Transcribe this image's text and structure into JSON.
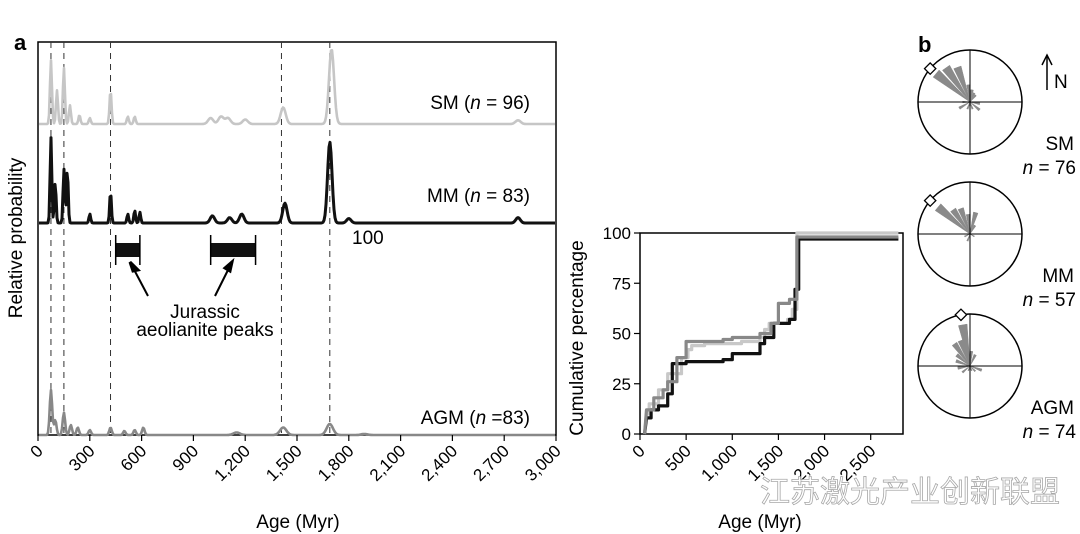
{
  "panel_a": {
    "label": "a"
  },
  "panel_b": {
    "label": "b"
  },
  "watermark": "江苏激光产业创新联盟",
  "chart_data": [
    {
      "type": "line",
      "panel": "a",
      "ylabel": "Relative probability",
      "xlabel": "Age (Myr)",
      "xlim": [
        0,
        3000
      ],
      "xticks": [
        "0",
        "300",
        "600",
        "900",
        "1,200",
        "1,500",
        "1,800",
        "2,100",
        "2,400",
        "2,700",
        "3,000"
      ],
      "reference_lines": [
        75,
        150,
        420,
        1410,
        1690
      ],
      "series": [
        {
          "name": "SM",
          "n_label": "(n = 96)",
          "color": "#c6c6c6",
          "peaks": [
            [
              75,
              0.85
            ],
            [
              110,
              0.45
            ],
            [
              150,
              0.75
            ],
            [
              185,
              0.25
            ],
            [
              240,
              0.12
            ],
            [
              300,
              0.08
            ],
            [
              420,
              0.45
            ],
            [
              520,
              0.1
            ],
            [
              560,
              0.1
            ],
            [
              1000,
              0.08
            ],
            [
              1060,
              0.1
            ],
            [
              1100,
              0.08
            ],
            [
              1200,
              0.06
            ],
            [
              1420,
              0.22
            ],
            [
              1700,
              1.0
            ],
            [
              2780,
              0.05
            ]
          ]
        },
        {
          "name": "MM",
          "n_label": "(n = 83)",
          "color": "#111111",
          "peaks": [
            [
              75,
              0.95
            ],
            [
              100,
              0.45
            ],
            [
              150,
              0.6
            ],
            [
              170,
              0.6
            ],
            [
              300,
              0.1
            ],
            [
              420,
              0.35
            ],
            [
              520,
              0.1
            ],
            [
              560,
              0.14
            ],
            [
              590,
              0.12
            ],
            [
              1010,
              0.08
            ],
            [
              1110,
              0.06
            ],
            [
              1180,
              0.1
            ],
            [
              1430,
              0.22
            ],
            [
              1690,
              0.9
            ],
            [
              1800,
              0.05
            ],
            [
              2780,
              0.06
            ]
          ]
        },
        {
          "name": "AGM",
          "n_label": "(n =83)",
          "color": "#888888",
          "peaks": [
            [
              75,
              0.9
            ],
            [
              100,
              0.3
            ],
            [
              150,
              0.45
            ],
            [
              190,
              0.2
            ],
            [
              230,
              0.15
            ],
            [
              300,
              0.1
            ],
            [
              420,
              0.15
            ],
            [
              500,
              0.08
            ],
            [
              560,
              0.1
            ],
            [
              610,
              0.15
            ],
            [
              1150,
              0.05
            ],
            [
              1420,
              0.15
            ],
            [
              1690,
              0.22
            ],
            [
              1890,
              0.02
            ]
          ]
        }
      ],
      "annotations": [
        {
          "text": "100"
        },
        {
          "text": "Jurassic"
        },
        {
          "text": "aeolianite peaks"
        }
      ],
      "highlight_bars": [
        [
          450,
          590
        ],
        [
          1000,
          1260
        ]
      ]
    },
    {
      "type": "line",
      "panel": "a-inset",
      "ylabel": "Cumulative percentage",
      "xlabel": "Age (Myr)",
      "xlim": [
        0,
        2850
      ],
      "ylim": [
        0,
        100
      ],
      "yticks": [
        "0",
        "25",
        "50",
        "75",
        "100"
      ],
      "xticks": [
        "0",
        "500",
        "1,000",
        "1,500",
        "2,000",
        "2,500"
      ],
      "series": [
        {
          "name": "SM",
          "color": "#c8c8c8",
          "points": [
            [
              50,
              0
            ],
            [
              70,
              10
            ],
            [
              100,
              15
            ],
            [
              200,
              22
            ],
            [
              300,
              30
            ],
            [
              450,
              38
            ],
            [
              520,
              42
            ],
            [
              560,
              44
            ],
            [
              700,
              45
            ],
            [
              1100,
              46
            ],
            [
              1300,
              48
            ],
            [
              1350,
              52
            ],
            [
              1400,
              55
            ],
            [
              1600,
              57
            ],
            [
              1650,
              62
            ],
            [
              1700,
              100
            ],
            [
              2800,
              100
            ]
          ]
        },
        {
          "name": "MM",
          "color": "#111111",
          "points": [
            [
              50,
              0
            ],
            [
              70,
              8
            ],
            [
              120,
              12
            ],
            [
              200,
              14
            ],
            [
              300,
              20
            ],
            [
              350,
              35
            ],
            [
              500,
              36
            ],
            [
              900,
              37
            ],
            [
              1000,
              40
            ],
            [
              1300,
              45
            ],
            [
              1350,
              48
            ],
            [
              1450,
              55
            ],
            [
              1620,
              57
            ],
            [
              1680,
              72
            ],
            [
              1720,
              97
            ],
            [
              2800,
              97
            ]
          ]
        },
        {
          "name": "AGM",
          "color": "#888888",
          "points": [
            [
              50,
              0
            ],
            [
              70,
              12
            ],
            [
              150,
              18
            ],
            [
              250,
              22
            ],
            [
              300,
              26
            ],
            [
              400,
              38
            ],
            [
              500,
              46
            ],
            [
              900,
              47
            ],
            [
              1000,
              48
            ],
            [
              1300,
              50
            ],
            [
              1420,
              55
            ],
            [
              1500,
              65
            ],
            [
              1620,
              67
            ],
            [
              1700,
              98
            ],
            [
              2800,
              98
            ]
          ]
        }
      ]
    },
    {
      "type": "rose",
      "panel": "b",
      "north_label": "N",
      "roses": [
        {
          "name": "SM",
          "n_label": "n = 76",
          "petals": [
            [
              310,
              0.9
            ],
            [
              325,
              0.85
            ],
            [
              340,
              0.75
            ],
            [
              355,
              0.35
            ],
            [
              10,
              0.25
            ],
            [
              25,
              0.2
            ],
            [
              40,
              0.18
            ],
            [
              100,
              0.2
            ],
            [
              130,
              0.25
            ],
            [
              160,
              0.15
            ],
            [
              200,
              0.15
            ],
            [
              240,
              0.25
            ],
            [
              270,
              0.15
            ]
          ]
        },
        {
          "name": "MM",
          "n_label": "n = 57",
          "petals": [
            [
              310,
              0.85
            ],
            [
              325,
              0.6
            ],
            [
              340,
              0.55
            ],
            [
              355,
              0.4
            ],
            [
              15,
              0.45
            ],
            [
              30,
              0.2
            ],
            [
              120,
              0.1
            ],
            [
              200,
              0.15
            ],
            [
              245,
              0.12
            ]
          ]
        },
        {
          "name": "AGM",
          "n_label": "n = 74",
          "petals": [
            [
              310,
              0.35
            ],
            [
              325,
              0.55
            ],
            [
              340,
              0.55
            ],
            [
              350,
              0.85
            ],
            [
              5,
              0.3
            ],
            [
              25,
              0.25
            ],
            [
              110,
              0.25
            ],
            [
              135,
              0.15
            ],
            [
              160,
              0.1
            ],
            [
              200,
              0.1
            ],
            [
              230,
              0.2
            ],
            [
              260,
              0.25
            ],
            [
              290,
              0.3
            ]
          ]
        }
      ]
    }
  ]
}
